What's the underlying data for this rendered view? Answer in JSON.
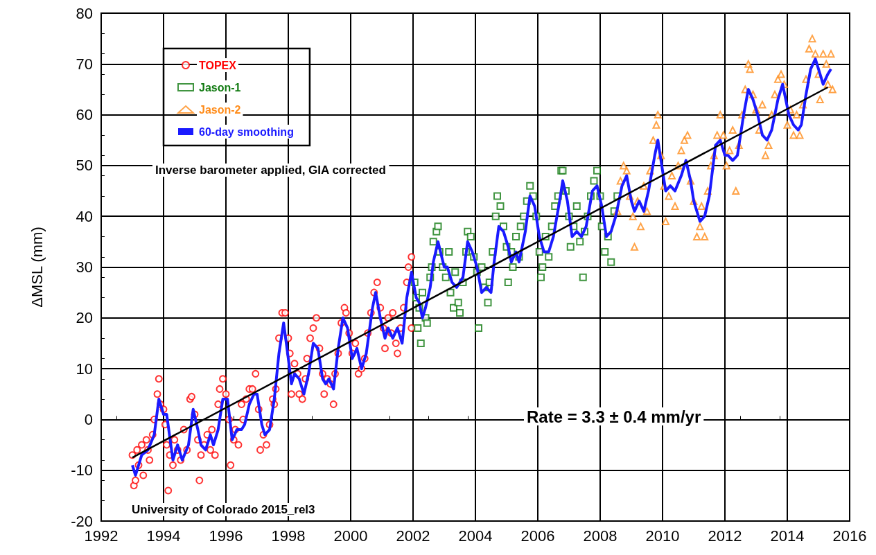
{
  "chart_data": {
    "type": "scatter",
    "ylabel": "ΔMSL (mm)",
    "xlim": [
      1992,
      2016
    ],
    "xticks": [
      1992,
      1994,
      1996,
      1998,
      2000,
      2002,
      2004,
      2006,
      2008,
      2010,
      2012,
      2014,
      2016
    ],
    "ylim": [
      -20,
      80
    ],
    "yticks": [
      -20,
      -10,
      0,
      10,
      20,
      30,
      40,
      50,
      60,
      70,
      80
    ],
    "grid": true,
    "legend": "top left",
    "annotations": [
      "Inverse barometer applied, GIA corrected",
      "University of Colorado 2015_rel3",
      "Rate = 3.3 ± 0.4 mm/yr"
    ],
    "series": [
      {
        "name": "TOPEX",
        "marker": "circle",
        "color": "#ff0000",
        "x": [
          1993.0,
          1993.05,
          1993.1,
          1993.15,
          1993.2,
          1993.3,
          1993.35,
          1993.45,
          1993.5,
          1993.55,
          1993.65,
          1993.7,
          1993.8,
          1993.85,
          1993.9,
          1994.0,
          1994.05,
          1994.1,
          1994.15,
          1994.2,
          1994.3,
          1994.35,
          1994.45,
          1994.55,
          1994.65,
          1994.75,
          1994.85,
          1994.9,
          1995.0,
          1995.1,
          1995.15,
          1995.2,
          1995.3,
          1995.4,
          1995.5,
          1995.55,
          1995.65,
          1995.75,
          1995.8,
          1995.9,
          1996.0,
          1996.1,
          1996.15,
          1996.25,
          1996.3,
          1996.4,
          1996.5,
          1996.55,
          1996.65,
          1996.75,
          1996.85,
          1996.95,
          1997.05,
          1997.1,
          1997.2,
          1997.3,
          1997.4,
          1997.5,
          1997.55,
          1997.6,
          1997.7,
          1997.8,
          1997.9,
          1998.0,
          1998.05,
          1998.1,
          1998.2,
          1998.3,
          1998.35,
          1998.45,
          1998.55,
          1998.6,
          1998.7,
          1998.8,
          1998.9,
          1999.0,
          1999.1,
          1999.15,
          1999.25,
          1999.35,
          1999.45,
          1999.5,
          1999.6,
          1999.7,
          1999.8,
          1999.85,
          1999.95,
          2000.05,
          2000.15,
          2000.25,
          2000.35,
          2000.45,
          2000.55,
          2000.65,
          2000.75,
          2000.85,
          2000.95,
          2001.05,
          2001.1,
          2001.2,
          2001.3,
          2001.35,
          2001.45,
          2001.5,
          2001.6,
          2001.7,
          2001.8,
          2001.85,
          2001.95,
          2001.95
        ],
        "values": [
          -7,
          -13,
          -12,
          -6,
          -9,
          -5,
          -11,
          -4,
          -6,
          -8,
          -3,
          0,
          5,
          8,
          3,
          2,
          -1,
          -5,
          -14,
          -7,
          -9,
          -4,
          -6,
          -8,
          -2,
          -6,
          4,
          4.5,
          1,
          -4,
          -12,
          -7,
          -5,
          -3,
          -6,
          -2,
          -7,
          3,
          6,
          8,
          5,
          0,
          -9,
          -4,
          -2,
          -5,
          3,
          0,
          4,
          6,
          6,
          9,
          2,
          -6,
          -3,
          -5,
          -1,
          4,
          3,
          6,
          16,
          21,
          21,
          16,
          13,
          5,
          11,
          9,
          5,
          4,
          8,
          12,
          16,
          18,
          20,
          14,
          9,
          5,
          8,
          7,
          3,
          9,
          13,
          19,
          22,
          21,
          17,
          13,
          15,
          9,
          10,
          12,
          17,
          21,
          25,
          27,
          22,
          18,
          14,
          20,
          17,
          21,
          15,
          13,
          18,
          22,
          27,
          30,
          32,
          18
        ]
      },
      {
        "name": "Jason-1",
        "marker": "square",
        "color": "#117a11",
        "x": [
          2002.05,
          2002.1,
          2002.15,
          2002.2,
          2002.25,
          2002.3,
          2002.4,
          2002.45,
          2002.55,
          2002.6,
          2002.65,
          2002.75,
          2002.8,
          2002.85,
          2002.95,
          2003.05,
          2003.15,
          2003.2,
          2003.3,
          2003.35,
          2003.45,
          2003.5,
          2003.6,
          2003.7,
          2003.75,
          2003.85,
          2003.95,
          2004.05,
          2004.1,
          2004.2,
          2004.3,
          2004.4,
          2004.45,
          2004.55,
          2004.65,
          2004.7,
          2004.8,
          2004.9,
          2005.0,
          2005.05,
          2005.15,
          2005.2,
          2005.3,
          2005.4,
          2005.45,
          2005.55,
          2005.65,
          2005.75,
          2005.85,
          2005.95,
          2006.05,
          2006.1,
          2006.15,
          2006.25,
          2006.35,
          2006.45,
          2006.55,
          2006.65,
          2006.75,
          2006.8,
          2006.9,
          2007.0,
          2007.05,
          2007.15,
          2007.25,
          2007.35,
          2007.45,
          2007.5,
          2007.6,
          2007.7,
          2007.8,
          2007.9,
          2008.0,
          2008.05,
          2008.15,
          2008.25,
          2008.35,
          2008.45,
          2008.55
        ],
        "values": [
          27,
          24,
          18,
          22,
          15,
          25,
          20,
          19,
          28,
          30,
          35,
          37,
          38,
          33,
          30,
          28,
          33,
          25,
          22,
          29,
          23,
          21,
          27,
          33,
          37,
          36,
          32,
          29,
          18,
          30,
          26,
          23,
          27,
          33,
          40,
          44,
          42,
          38,
          34,
          27,
          33,
          30,
          36,
          32,
          38,
          40,
          43,
          46,
          44,
          40,
          33,
          28,
          30,
          36,
          32,
          38,
          42,
          44,
          49,
          49,
          45,
          40,
          34,
          38,
          42,
          35,
          28,
          37,
          40,
          44,
          47,
          49,
          44,
          38,
          33,
          36,
          31,
          41,
          44
        ]
      },
      {
        "name": "Jason-2",
        "marker": "triangle",
        "color": "#ff8c1a",
        "x": [
          2008.55,
          2008.65,
          2008.75,
          2008.85,
          2008.95,
          2009.05,
          2009.1,
          2009.2,
          2009.3,
          2009.4,
          2009.5,
          2009.6,
          2009.7,
          2009.8,
          2009.85,
          2009.95,
          2010.05,
          2010.1,
          2010.2,
          2010.3,
          2010.4,
          2010.5,
          2010.6,
          2010.7,
          2010.8,
          2010.9,
          2011.0,
          2011.1,
          2011.2,
          2011.25,
          2011.35,
          2011.45,
          2011.55,
          2011.65,
          2011.75,
          2011.85,
          2011.95,
          2012.05,
          2012.15,
          2012.25,
          2012.35,
          2012.45,
          2012.55,
          2012.65,
          2012.75,
          2012.8,
          2012.9,
          2013.0,
          2013.1,
          2013.2,
          2013.3,
          2013.4,
          2013.5,
          2013.6,
          2013.7,
          2013.8,
          2013.9,
          2014.0,
          2014.1,
          2014.2,
          2014.3,
          2014.4,
          2014.5,
          2014.6,
          2014.7,
          2014.8,
          2014.9,
          2015.0,
          2015.05,
          2015.15,
          2015.25,
          2015.3,
          2015.4,
          2015.45
        ],
        "values": [
          41,
          47,
          50,
          49,
          44,
          40,
          34,
          43,
          38,
          46,
          41,
          49,
          55,
          58,
          60,
          52,
          46,
          39,
          44,
          48,
          42,
          50,
          53,
          55,
          56,
          47,
          43,
          36,
          38,
          42,
          36,
          45,
          50,
          52,
          56,
          60,
          56,
          50,
          53,
          57,
          45,
          54,
          60,
          65,
          70,
          69,
          64,
          61,
          57,
          62,
          52,
          54,
          60,
          64,
          67,
          68,
          66,
          58,
          61,
          56,
          60,
          56,
          62,
          67,
          73,
          75,
          72,
          68,
          63,
          72,
          70,
          66,
          72,
          65
        ]
      },
      {
        "name": "60-day smoothing",
        "type": "line",
        "marker": "none",
        "line_style": "solid",
        "color": "#1a1aff",
        "x": [
          1993.0,
          1993.1,
          1993.3,
          1993.5,
          1993.7,
          1993.85,
          1994.0,
          1994.1,
          1994.3,
          1994.45,
          1994.6,
          1994.8,
          1994.95,
          1995.1,
          1995.2,
          1995.35,
          1995.5,
          1995.6,
          1995.75,
          1995.9,
          1996.05,
          1996.2,
          1996.35,
          1996.5,
          1996.6,
          1996.75,
          1996.9,
          1997.0,
          1997.15,
          1997.25,
          1997.4,
          1997.55,
          1997.7,
          1997.85,
          1998.0,
          1998.1,
          1998.2,
          1998.35,
          1998.5,
          1998.65,
          1998.8,
          1998.95,
          1999.1,
          1999.2,
          1999.3,
          1999.45,
          1999.6,
          1999.75,
          1999.9,
          2000.05,
          2000.2,
          2000.35,
          2000.5,
          2000.7,
          2000.8,
          2000.95,
          2001.1,
          2001.2,
          2001.35,
          2001.5,
          2001.65,
          2001.8,
          2001.95,
          2002.1,
          2002.2,
          2002.3,
          2002.4,
          2002.55,
          2002.65,
          2002.8,
          2003.0,
          2003.1,
          2003.25,
          2003.4,
          2003.6,
          2003.75,
          2003.9,
          2004.05,
          2004.2,
          2004.35,
          2004.5,
          2004.6,
          2004.75,
          2004.9,
          2005.05,
          2005.15,
          2005.3,
          2005.4,
          2005.6,
          2005.75,
          2005.9,
          2006.05,
          2006.2,
          2006.35,
          2006.5,
          2006.7,
          2006.8,
          2006.95,
          2007.1,
          2007.25,
          2007.4,
          2007.55,
          2007.75,
          2007.9,
          2008.05,
          2008.2,
          2008.35,
          2008.5,
          2008.7,
          2008.85,
          2009.0,
          2009.1,
          2009.25,
          2009.4,
          2009.55,
          2009.75,
          2009.85,
          2010.0,
          2010.1,
          2010.25,
          2010.4,
          2010.6,
          2010.75,
          2010.9,
          2011.0,
          2011.2,
          2011.35,
          2011.5,
          2011.7,
          2011.85,
          2012.0,
          2012.1,
          2012.25,
          2012.4,
          2012.6,
          2012.75,
          2012.9,
          2013.05,
          2013.2,
          2013.35,
          2013.5,
          2013.7,
          2013.85,
          2014.05,
          2014.2,
          2014.35,
          2014.45,
          2014.6,
          2014.75,
          2014.9,
          2015.05,
          2015.15,
          2015.3,
          2015.4
        ],
        "values": [
          -9,
          -11,
          -7,
          -6,
          -3,
          4,
          1,
          1,
          -8,
          -5,
          -8,
          -5,
          2,
          -2,
          -5,
          -6,
          -3,
          -5,
          -2,
          4,
          4,
          -4,
          -2,
          -2,
          -1,
          3,
          5,
          5,
          -1,
          -3,
          -2,
          4,
          13,
          19,
          12,
          7,
          9,
          8,
          5,
          9,
          15,
          14,
          8,
          7,
          8,
          6,
          14,
          20,
          18,
          12,
          14,
          10,
          13,
          22,
          25,
          20,
          16,
          18,
          16,
          18,
          15,
          24,
          29,
          24,
          23,
          20,
          22,
          26,
          31,
          35,
          30,
          30,
          27,
          26,
          28,
          35,
          33,
          30,
          25,
          26,
          25,
          31,
          38,
          37,
          34,
          31,
          33,
          31,
          37,
          44,
          42,
          36,
          33,
          33,
          36,
          43,
          47,
          43,
          36,
          37,
          36,
          38,
          45,
          46,
          42,
          36,
          37,
          40,
          46,
          48,
          43,
          41,
          43,
          41,
          45,
          52,
          55,
          49,
          45,
          46,
          45,
          48,
          51,
          47,
          43,
          39,
          40,
          44,
          54,
          55,
          52,
          52,
          51,
          52,
          60,
          65,
          63,
          60,
          56,
          55,
          57,
          63,
          66,
          60,
          58,
          57,
          58,
          64,
          69,
          71,
          68,
          66,
          68,
          69
        ]
      },
      {
        "type": "line",
        "marker": "none",
        "line_style": "solid",
        "color": "#000000",
        "x": [
          1993,
          2015.3
        ],
        "values": [
          -7.5,
          65.4
        ]
      }
    ]
  }
}
